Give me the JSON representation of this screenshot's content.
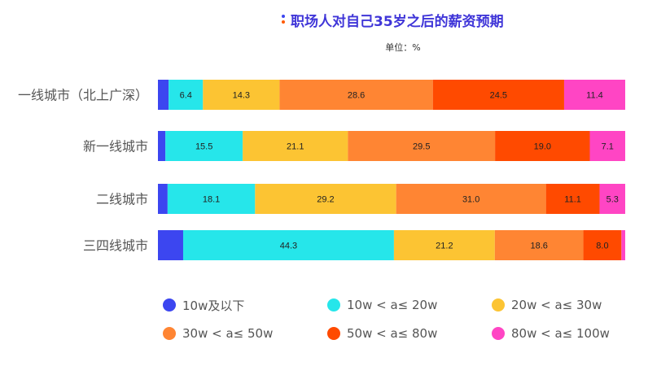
{
  "title": "职场人对自己35岁之后的薪资预期",
  "subtitle": "单位：%",
  "title_colors": {
    "title": "#3f35d8",
    "dot1": "#3c46f0",
    "dot2": "#ff5a00"
  },
  "legend": [
    {
      "label": "10w及以下",
      "color": "#3c46f0"
    },
    {
      "label": "10w < a≤ 20w",
      "color": "#26e6ea"
    },
    {
      "label": "20w < a≤ 30w",
      "color": "#fcc433"
    },
    {
      "label": "30w < a≤ 50w",
      "color": "#ff8533"
    },
    {
      "label": "50w < a≤ 80w",
      "color": "#ff4a00"
    },
    {
      "label": "80w < a≤ 100w",
      "color": "#ff45c4"
    }
  ],
  "chart_data": {
    "type": "bar",
    "orientation": "horizontal",
    "stacked": "percent",
    "title": "职场人对自己35岁之后的薪资预期",
    "unit": "单位：%",
    "categories": [
      "一线城市（北上广深）",
      "新一线城市",
      "二线城市",
      "三四线城市"
    ],
    "series": [
      {
        "name": "10w及以下",
        "color": "#3c46f0",
        "values": [
          2.0,
          1.5,
          2.0,
          5.3
        ],
        "labels": [
          "",
          "",
          "",
          ""
        ]
      },
      {
        "name": "10w < a≤ 20w",
        "color": "#26e6ea",
        "values": [
          6.4,
          15.5,
          18.1,
          44.3
        ],
        "labels": [
          "6.4",
          "15.5",
          "18.1",
          "44.3"
        ]
      },
      {
        "name": "20w < a≤ 30w",
        "color": "#fcc433",
        "values": [
          14.3,
          21.1,
          29.2,
          21.2
        ],
        "labels": [
          "14.3",
          "21.1",
          "29.2",
          "21.2"
        ]
      },
      {
        "name": "30w < a≤ 50w",
        "color": "#ff8533",
        "values": [
          28.6,
          29.5,
          31.0,
          18.6
        ],
        "labels": [
          "28.6",
          "29.5",
          "31.0",
          "18.6"
        ]
      },
      {
        "name": "50w < a≤ 80w",
        "color": "#ff4a00",
        "values": [
          24.5,
          19.0,
          11.1,
          8.0
        ],
        "labels": [
          "24.5",
          "19.0",
          "11.1",
          "8.0"
        ]
      },
      {
        "name": "80w < a≤ 100w",
        "color": "#ff45c4",
        "values": [
          11.4,
          7.1,
          5.3,
          0.8
        ],
        "labels": [
          "11.4",
          "7.1",
          "5.3",
          ""
        ]
      }
    ],
    "xlim": [
      0,
      100
    ],
    "grid": false,
    "legend_position": "bottom"
  }
}
